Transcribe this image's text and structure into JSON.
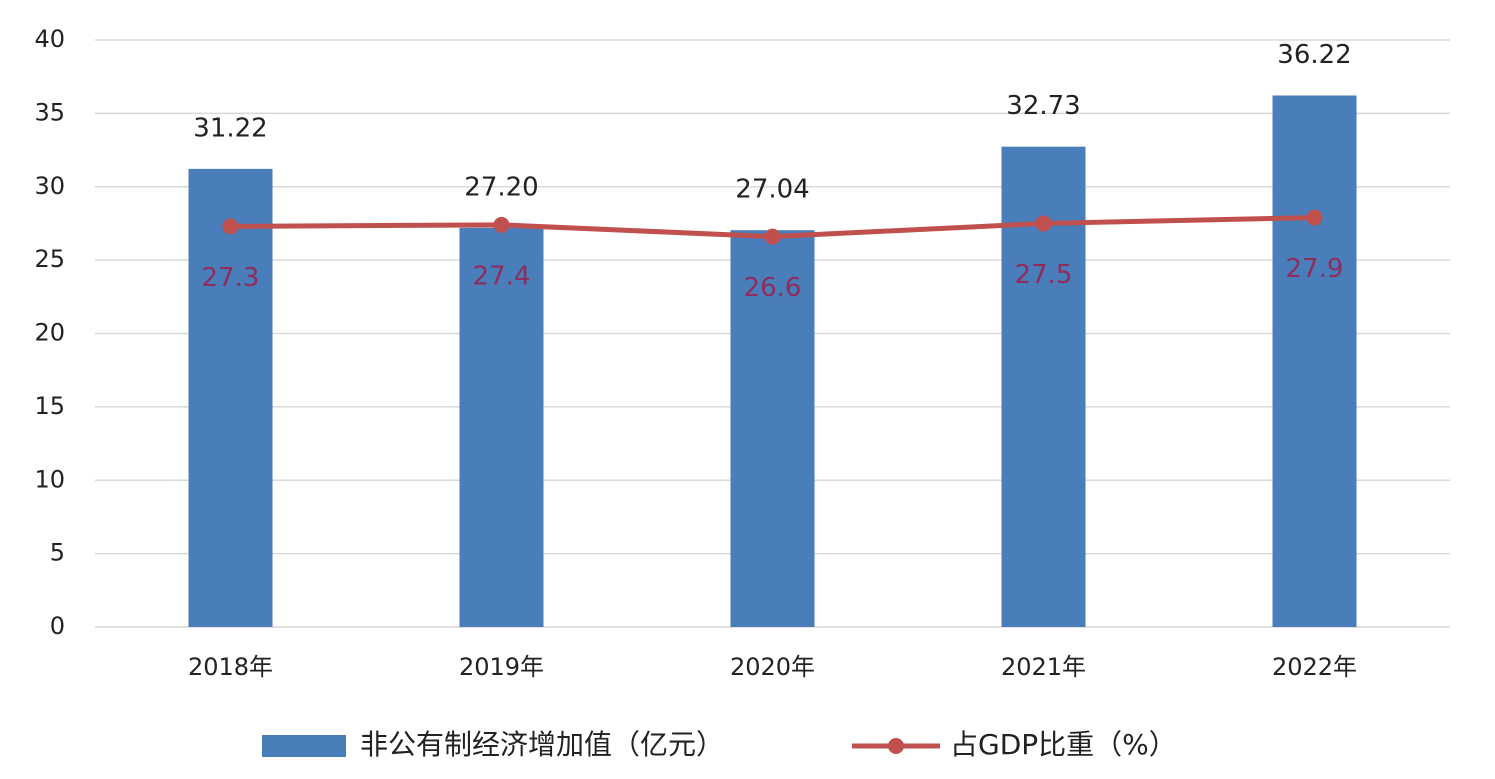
{
  "chart_data": {
    "type": "bar",
    "categories": [
      "2018年",
      "2019年",
      "2020年",
      "2021年",
      "2022年"
    ],
    "series": [
      {
        "name": "非公有制经济增加值（亿元）",
        "type": "bar",
        "color": "#4a7ebb",
        "values": [
          31.22,
          27.2,
          27.04,
          32.73,
          36.22
        ],
        "value_labels": [
          "31.22",
          "27.20",
          "27.04",
          "32.73",
          "36.22"
        ]
      },
      {
        "name": "占GDP比重（%）",
        "type": "line",
        "color": "#c0504d",
        "label_color": "#8e2c5e",
        "values": [
          27.3,
          27.4,
          26.6,
          27.5,
          27.9
        ]
      }
    ],
    "ylim": [
      0,
      40
    ],
    "yticks": [
      0,
      5,
      10,
      15,
      20,
      25,
      30,
      35,
      40
    ],
    "grid": true
  }
}
